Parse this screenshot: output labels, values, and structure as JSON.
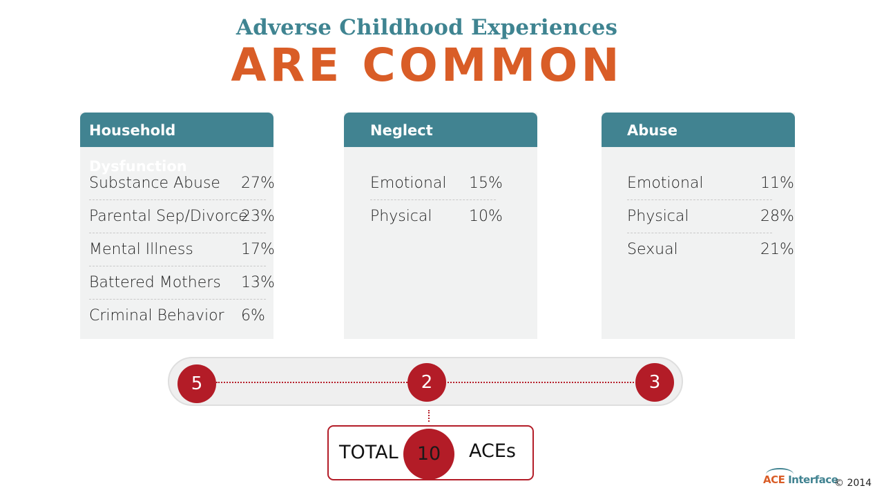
{
  "title": {
    "top": "Adverse Childhood Experiences",
    "main": "ARE COMMON"
  },
  "categories": [
    {
      "heading": "Household Dysfunction",
      "items": [
        {
          "label": "Substance Abuse",
          "pct": "27%"
        },
        {
          "label": "Parental Sep/Divorce",
          "pct": "23%"
        },
        {
          "label": "Mental Illness",
          "pct": "17%"
        },
        {
          "label": "Battered Mothers",
          "pct": "13%"
        },
        {
          "label": "Criminal Behavior",
          "pct": "6%"
        }
      ],
      "count": "5"
    },
    {
      "heading": "Neglect",
      "items": [
        {
          "label": "Emotional",
          "pct": "15%"
        },
        {
          "label": "Physical",
          "pct": "10%"
        }
      ],
      "count": "2"
    },
    {
      "heading": "Abuse",
      "items": [
        {
          "label": "Emotional",
          "pct": "11%"
        },
        {
          "label": "Physical",
          "pct": "28%"
        },
        {
          "label": "Sexual",
          "pct": "21%"
        }
      ],
      "count": "3"
    }
  ],
  "total": {
    "label": "TOTAL",
    "value": "10",
    "unit": "ACEs"
  },
  "footer": {
    "logo_part1": "ACE ",
    "logo_part2": "Interface",
    "copyright": "© 2014"
  },
  "colors": {
    "teal": "#418391",
    "orange": "#d95d27",
    "red": "#b31c27"
  }
}
